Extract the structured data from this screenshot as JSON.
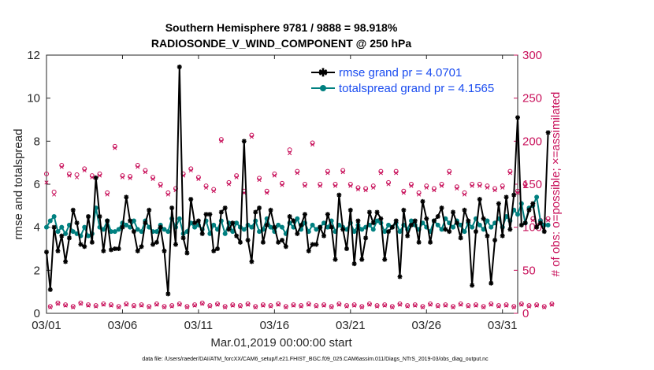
{
  "chart_data": {
    "type": "line",
    "title_line1": "Southern Hemisphere 9781 / 9888 = 98.918%",
    "title_line2": "RADIOSONDE_V_WIND_COMPONENT @ 250 hPa",
    "xlabel": "Mar.01,2019 00:00:00 start",
    "ylabel": "rmse and totalspread",
    "ylabel_right": "# of obs: o=possible; ×=assimilated",
    "xlim": [
      1,
      32
    ],
    "ylim": [
      0,
      12
    ],
    "ylim_right": [
      0,
      300
    ],
    "x_ticks": [
      1,
      6,
      11,
      16,
      21,
      26,
      31
    ],
    "x_tick_labels": [
      "03/01",
      "03/06",
      "03/11",
      "03/16",
      "03/21",
      "03/26",
      "03/31"
    ],
    "y_ticks": [
      0,
      2,
      4,
      6,
      8,
      10,
      12
    ],
    "y_tick_labels": [
      "0",
      "2",
      "4",
      "6",
      "8",
      "10",
      "12"
    ],
    "y_ticks_right": [
      0,
      50,
      100,
      150,
      200,
      250,
      300
    ],
    "y_tick_labels_right": [
      "0",
      "50",
      "100",
      "150",
      "200",
      "250",
      "300"
    ],
    "colors": {
      "rmse": "#000000",
      "spread": "#008080",
      "obs": "#c8105a",
      "legend_text": "#1a4cf0",
      "axis": "#262626"
    },
    "time_step_days": 0.25,
    "series": [
      {
        "name": "rmse grand pr = 4.0701",
        "values": [
          2.85,
          1.1,
          4.0,
          2.9,
          3.6,
          2.4,
          3.5,
          4.8,
          4.2,
          3.2,
          3.1,
          4.5,
          3.3,
          6.3,
          4.5,
          2.9,
          4.3,
          2.95,
          3.0,
          3.0,
          4.0,
          5.4,
          4.3,
          3.8,
          2.9,
          3.1,
          4.2,
          4.8,
          3.2,
          3.3,
          4.0,
          2.9,
          0.9,
          4.9,
          3.2,
          11.45,
          3.5,
          2.8,
          5.3,
          4.2,
          4.3,
          3.7,
          4.6,
          4.6,
          2.9,
          3.0,
          4.7,
          4.9,
          3.9,
          4.2,
          3.6,
          3.3,
          8.0,
          3.4,
          2.4,
          4.7,
          4.9,
          3.3,
          4.1,
          4.8,
          4.0,
          3.3,
          3.4,
          3.1,
          4.5,
          4.3,
          3.7,
          4.1,
          4.6,
          2.9,
          3.2,
          3.2,
          4.0,
          3.6,
          4.6,
          4.0,
          2.5,
          5.5,
          3.9,
          3.0,
          4.8,
          2.3,
          4.3,
          2.5,
          3.5,
          4.7,
          4.2,
          4.7,
          4.4,
          2.5,
          3.8,
          4.0,
          4.3,
          1.7,
          4.8,
          3.6,
          4.1,
          4.3,
          3.3,
          5.2,
          4.4,
          3.3,
          4.3,
          4.5,
          4.9,
          3.9,
          3.8,
          4.7,
          4.2,
          3.5,
          4.8,
          4.3,
          1.3,
          3.8,
          5.3,
          4.4,
          3.6,
          1.4,
          3.4,
          5.1,
          3.6,
          5.4,
          3.9,
          5.5,
          9.1,
          4.1,
          4.2,
          4.8,
          5.1,
          4.0,
          4.2,
          3.8,
          8.4
        ]
      },
      {
        "name": "totalspread grand pr = 4.1565",
        "values": [
          4.0,
          4.3,
          4.5,
          3.8,
          4.0,
          3.7,
          4.1,
          3.8,
          3.7,
          3.6,
          4.0,
          3.6,
          3.7,
          4.9,
          4.0,
          3.9,
          4.3,
          3.8,
          3.8,
          3.9,
          4.2,
          4.1,
          4.0,
          4.3,
          3.9,
          3.8,
          4.3,
          4.0,
          3.8,
          3.8,
          4.1,
          3.9,
          3.8,
          4.4,
          4.0,
          4.4,
          3.7,
          3.8,
          4.2,
          4.0,
          4.1,
          3.9,
          4.3,
          3.7,
          4.1,
          3.9,
          4.3,
          3.7,
          4.2,
          3.8,
          4.2,
          4.0,
          3.9,
          4.1,
          4.0,
          4.3,
          3.8,
          3.9,
          4.4,
          4.0,
          3.8,
          4.1,
          4.0,
          3.7,
          4.2,
          4.0,
          4.4,
          3.9,
          4.2,
          3.8,
          4.1,
          3.9,
          4.0,
          4.2,
          4.0,
          4.3,
          3.8,
          4.1,
          4.0,
          3.9,
          4.2,
          3.8,
          4.1,
          3.9,
          4.0,
          4.1,
          3.9,
          4.3,
          4.2,
          3.8,
          4.1,
          4.0,
          4.2,
          3.8,
          4.1,
          3.9,
          4.3,
          4.1,
          3.9,
          4.2,
          4.0,
          3.8,
          4.3,
          4.1,
          3.9,
          4.4,
          4.2,
          4.0,
          4.3,
          4.1,
          3.8,
          4.2,
          4.0,
          4.4,
          4.1,
          3.9,
          4.3,
          4.0,
          4.2,
          4.4,
          4.0,
          4.5,
          4.3,
          4.8,
          4.6,
          5.1,
          4.2,
          4.9,
          5.0,
          5.4,
          4.3,
          4.1,
          4.1
        ]
      },
      {
        "name": "# of obs possible",
        "values": [
          162,
          8,
          141,
          12,
          172,
          10,
          162,
          8,
          161,
          12,
          168,
          10,
          160,
          9,
          162,
          11,
          140,
          10,
          194,
          8,
          160,
          11,
          159,
          9,
          172,
          10,
          166,
          8,
          158,
          11,
          150,
          8,
          140,
          9,
          145,
          11,
          162,
          8,
          168,
          10,
          158,
          12,
          148,
          9,
          144,
          11,
          202,
          8,
          152,
          10,
          160,
          9,
          142,
          11,
          207,
          8,
          157,
          10,
          142,
          9,
          162,
          11,
          151,
          8,
          190,
          10,
          165,
          9,
          150,
          11,
          198,
          9,
          150,
          10,
          165,
          8,
          150,
          11,
          166,
          9,
          150,
          10,
          146,
          8,
          145,
          11,
          148,
          9,
          165,
          10,
          152,
          8,
          165,
          11,
          142,
          9,
          150,
          10,
          140,
          8,
          148,
          11,
          145,
          9,
          150,
          10,
          165,
          8,
          147,
          11,
          140,
          9,
          150,
          10,
          150,
          8,
          148,
          11,
          145,
          9,
          148,
          10,
          165,
          8,
          142,
          11,
          150,
          9,
          110,
          10,
          108,
          8,
          110,
          11
        ]
      },
      {
        "name": "# of obs assimilated",
        "values": [
          152,
          7,
          138,
          11,
          170,
          9,
          160,
          7,
          158,
          11,
          166,
          9,
          158,
          8,
          160,
          10,
          138,
          9,
          192,
          7,
          158,
          10,
          157,
          8,
          170,
          9,
          164,
          7,
          156,
          10,
          148,
          7,
          138,
          8,
          143,
          10,
          160,
          7,
          166,
          9,
          156,
          11,
          146,
          8,
          142,
          10,
          200,
          7,
          150,
          9,
          158,
          8,
          140,
          10,
          205,
          7,
          155,
          9,
          140,
          8,
          160,
          10,
          149,
          7,
          186,
          9,
          163,
          8,
          148,
          10,
          196,
          8,
          148,
          9,
          163,
          7,
          148,
          10,
          164,
          8,
          148,
          9,
          144,
          7,
          143,
          10,
          146,
          8,
          163,
          9,
          150,
          7,
          163,
          10,
          140,
          8,
          148,
          9,
          138,
          7,
          146,
          10,
          143,
          8,
          148,
          9,
          163,
          7,
          145,
          10,
          138,
          8,
          148,
          9,
          148,
          7,
          146,
          10,
          143,
          8,
          146,
          9,
          163,
          7,
          140,
          10,
          148,
          8,
          108,
          9,
          106,
          7,
          108,
          10
        ]
      }
    ]
  },
  "footer_text": "data file: /Users/raeder/DAI/ATM_forcXX/CAM6_setup/f.e21.FHIST_BGC.f09_025.CAM6assim.011/Diags_NTrS_2019-03/obs_diag_output.nc"
}
